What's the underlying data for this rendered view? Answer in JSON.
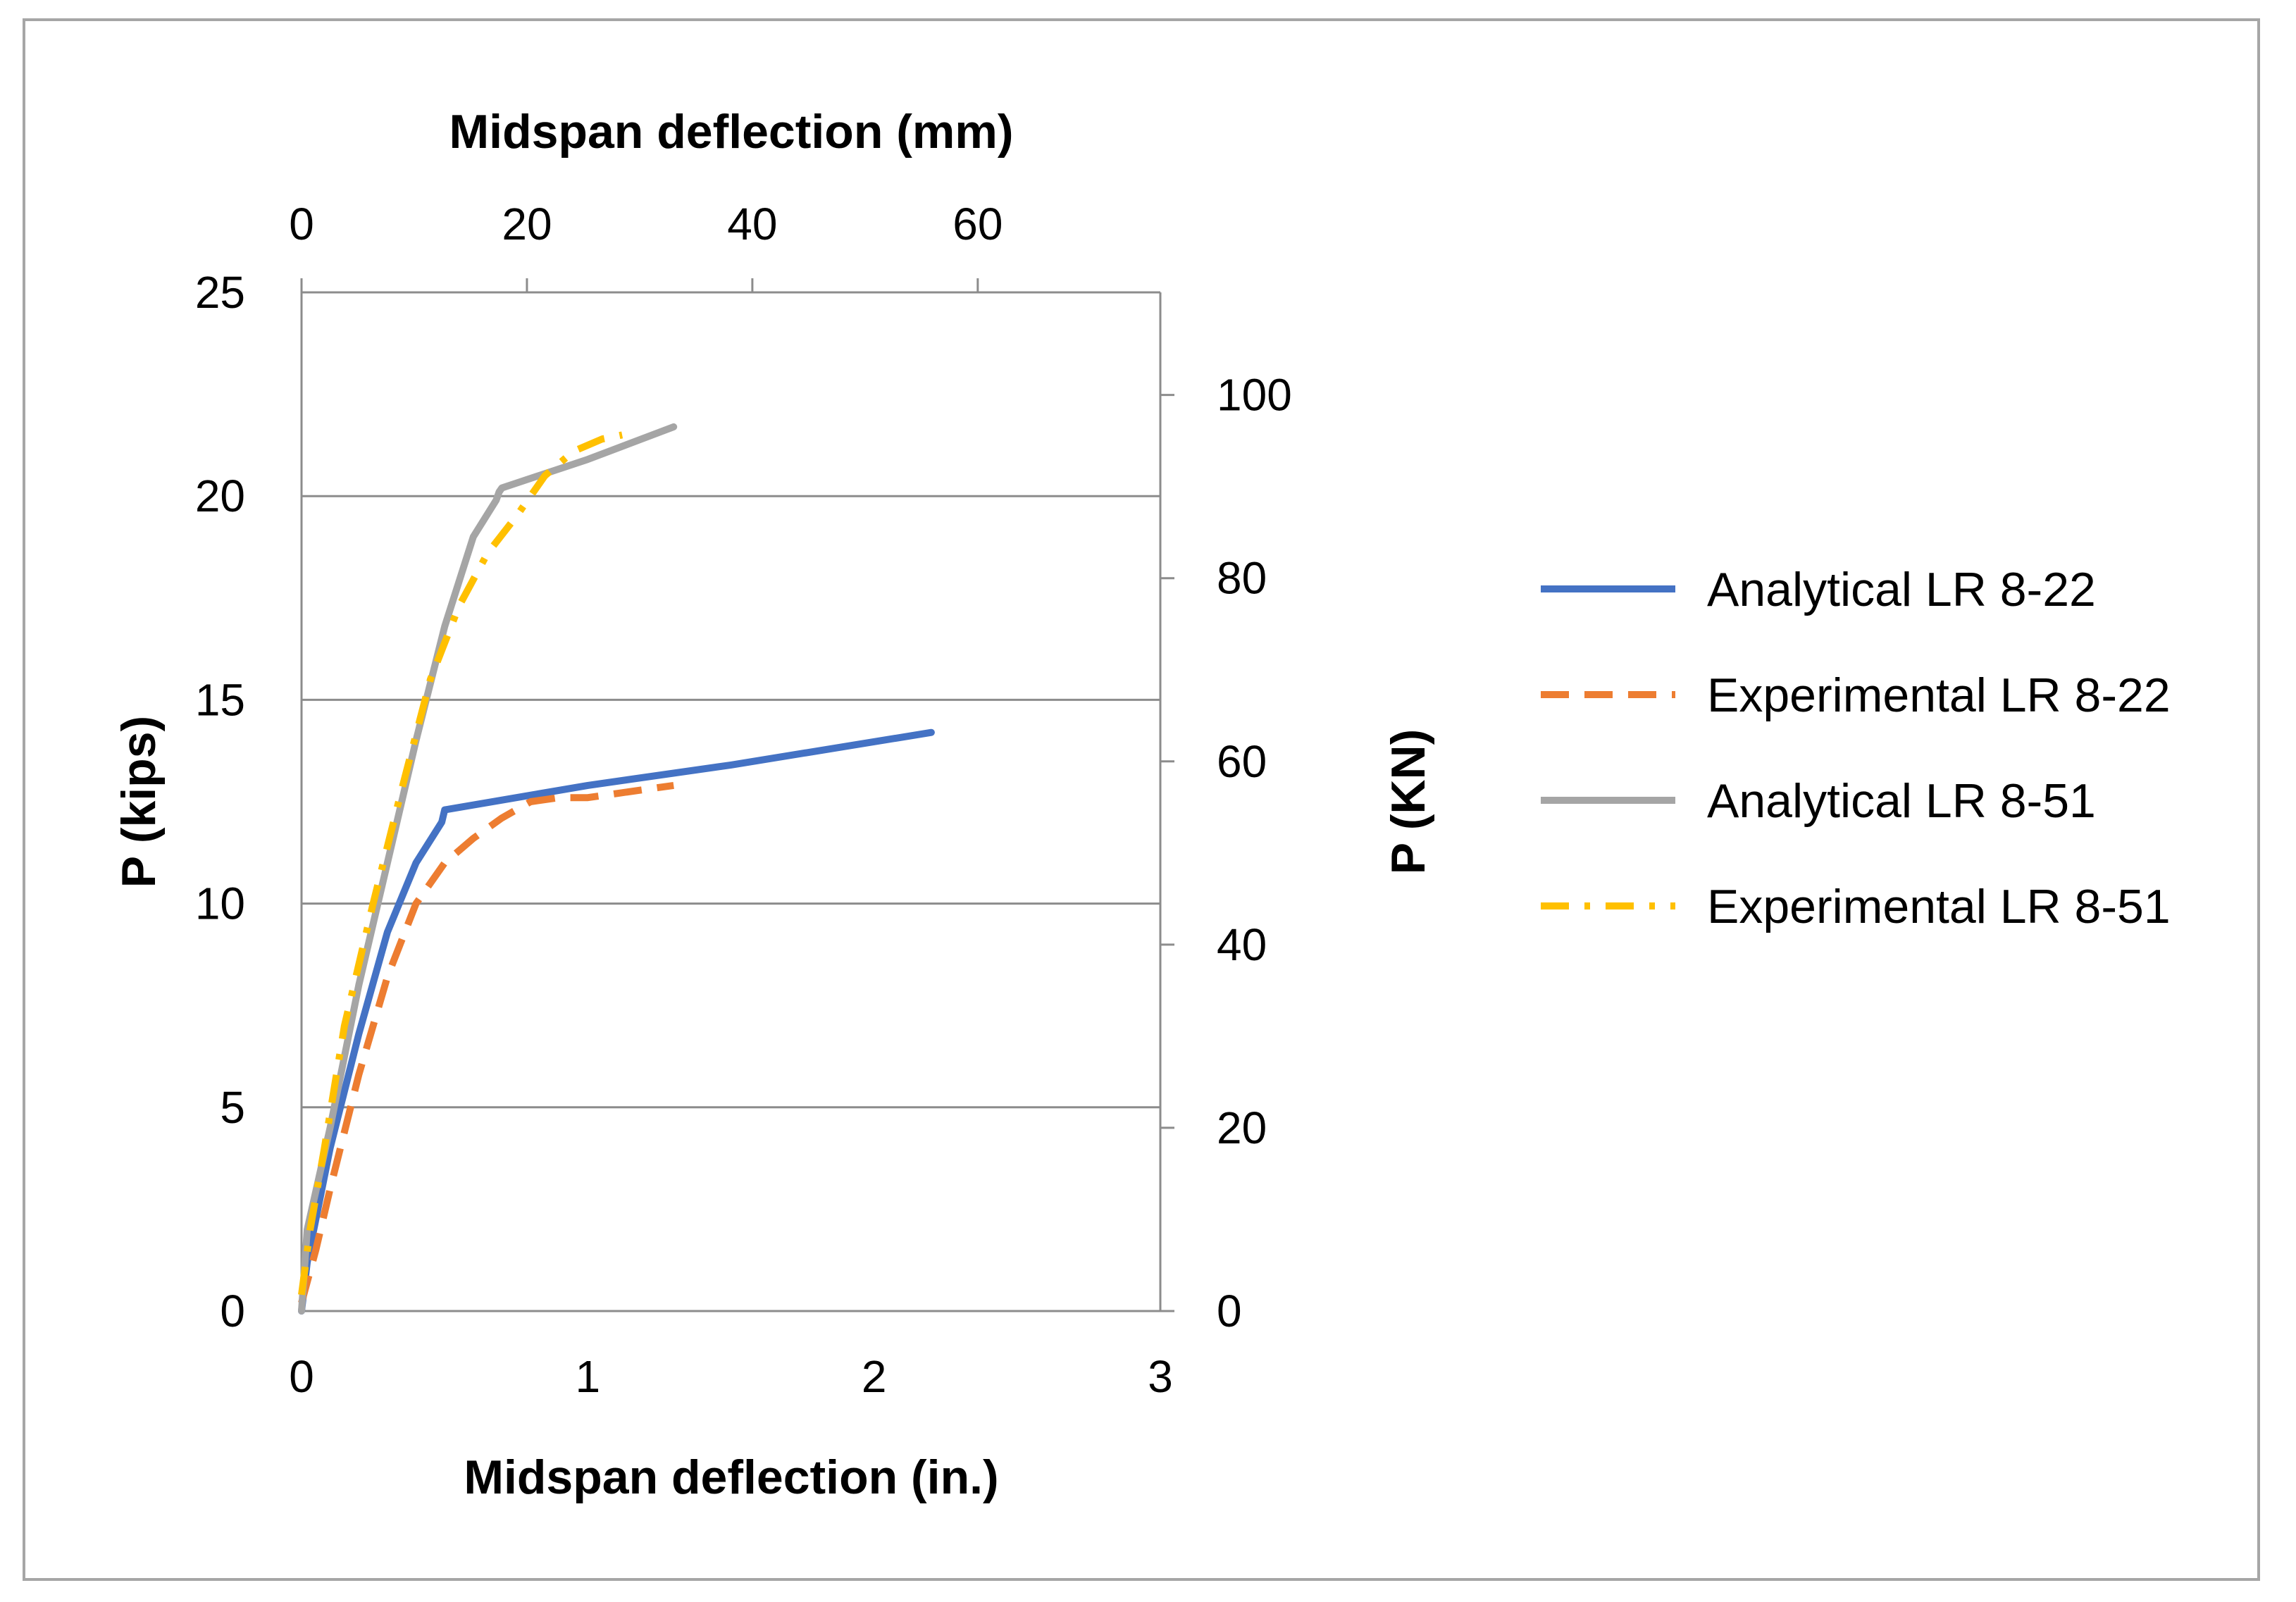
{
  "chart_data": {
    "type": "line",
    "title": "",
    "xlabel": "Midspan deflection (in.)",
    "ylabel": "P (kips)",
    "x2label": "Midspan deflection (mm)",
    "y2label": "P (KN)",
    "xlim": [
      0,
      3
    ],
    "ylim": [
      0,
      25
    ],
    "x2lim": [
      0,
      76.2
    ],
    "y2lim": [
      0,
      111.2
    ],
    "xticks": [
      "0",
      "1",
      "2",
      "3"
    ],
    "yticks": [
      "0",
      "5",
      "10",
      "15",
      "20",
      "25"
    ],
    "x2ticks": [
      "0",
      "20",
      "40",
      "60"
    ],
    "y2ticks": [
      "0",
      "20",
      "40",
      "60",
      "80",
      "100"
    ],
    "grid": "horizontal",
    "legend_position": "right",
    "series": [
      {
        "name": "Analytical LR 8-22",
        "color": "#4472C4",
        "style": "solid",
        "points": [
          [
            0,
            0
          ],
          [
            0.02,
            1.2
          ],
          [
            0.1,
            4.0
          ],
          [
            0.2,
            6.8
          ],
          [
            0.3,
            9.3
          ],
          [
            0.4,
            11.0
          ],
          [
            0.49,
            12.0
          ],
          [
            0.5,
            12.3
          ],
          [
            1.0,
            12.9
          ],
          [
            1.5,
            13.4
          ],
          [
            2.2,
            14.2
          ]
        ]
      },
      {
        "name": "Experimental LR 8-22",
        "color": "#ED7D31",
        "style": "dashed",
        "points": [
          [
            0,
            0.2
          ],
          [
            0.05,
            1.5
          ],
          [
            0.1,
            3.0
          ],
          [
            0.2,
            5.8
          ],
          [
            0.3,
            8.2
          ],
          [
            0.4,
            10.0
          ],
          [
            0.5,
            11.0
          ],
          [
            0.6,
            11.6
          ],
          [
            0.7,
            12.1
          ],
          [
            0.8,
            12.5
          ],
          [
            0.9,
            12.6
          ],
          [
            1.0,
            12.6
          ],
          [
            1.1,
            12.7
          ],
          [
            1.2,
            12.8
          ],
          [
            1.3,
            12.9
          ]
        ]
      },
      {
        "name": "Analytical LR 8-51",
        "color": "#A5A5A5",
        "style": "solid",
        "points": [
          [
            0,
            0
          ],
          [
            0.02,
            2.0
          ],
          [
            0.1,
            4.5
          ],
          [
            0.2,
            8.0
          ],
          [
            0.3,
            11.0
          ],
          [
            0.4,
            14.0
          ],
          [
            0.5,
            16.8
          ],
          [
            0.6,
            19.0
          ],
          [
            0.68,
            19.9
          ],
          [
            0.69,
            20.1
          ],
          [
            0.7,
            20.2
          ],
          [
            1.0,
            20.9
          ],
          [
            1.3,
            21.7
          ]
        ]
      },
      {
        "name": "Experimental LR 8-51",
        "color": "#FFC000",
        "style": "dashdot",
        "points": [
          [
            0,
            0.4
          ],
          [
            0.03,
            2.0
          ],
          [
            0.08,
            4.0
          ],
          [
            0.15,
            7.0
          ],
          [
            0.25,
            10.0
          ],
          [
            0.35,
            12.8
          ],
          [
            0.45,
            15.5
          ],
          [
            0.55,
            17.3
          ],
          [
            0.65,
            18.6
          ],
          [
            0.75,
            19.5
          ],
          [
            0.85,
            20.5
          ],
          [
            0.95,
            21.1
          ],
          [
            1.05,
            21.4
          ],
          [
            1.12,
            21.5
          ]
        ]
      }
    ]
  }
}
